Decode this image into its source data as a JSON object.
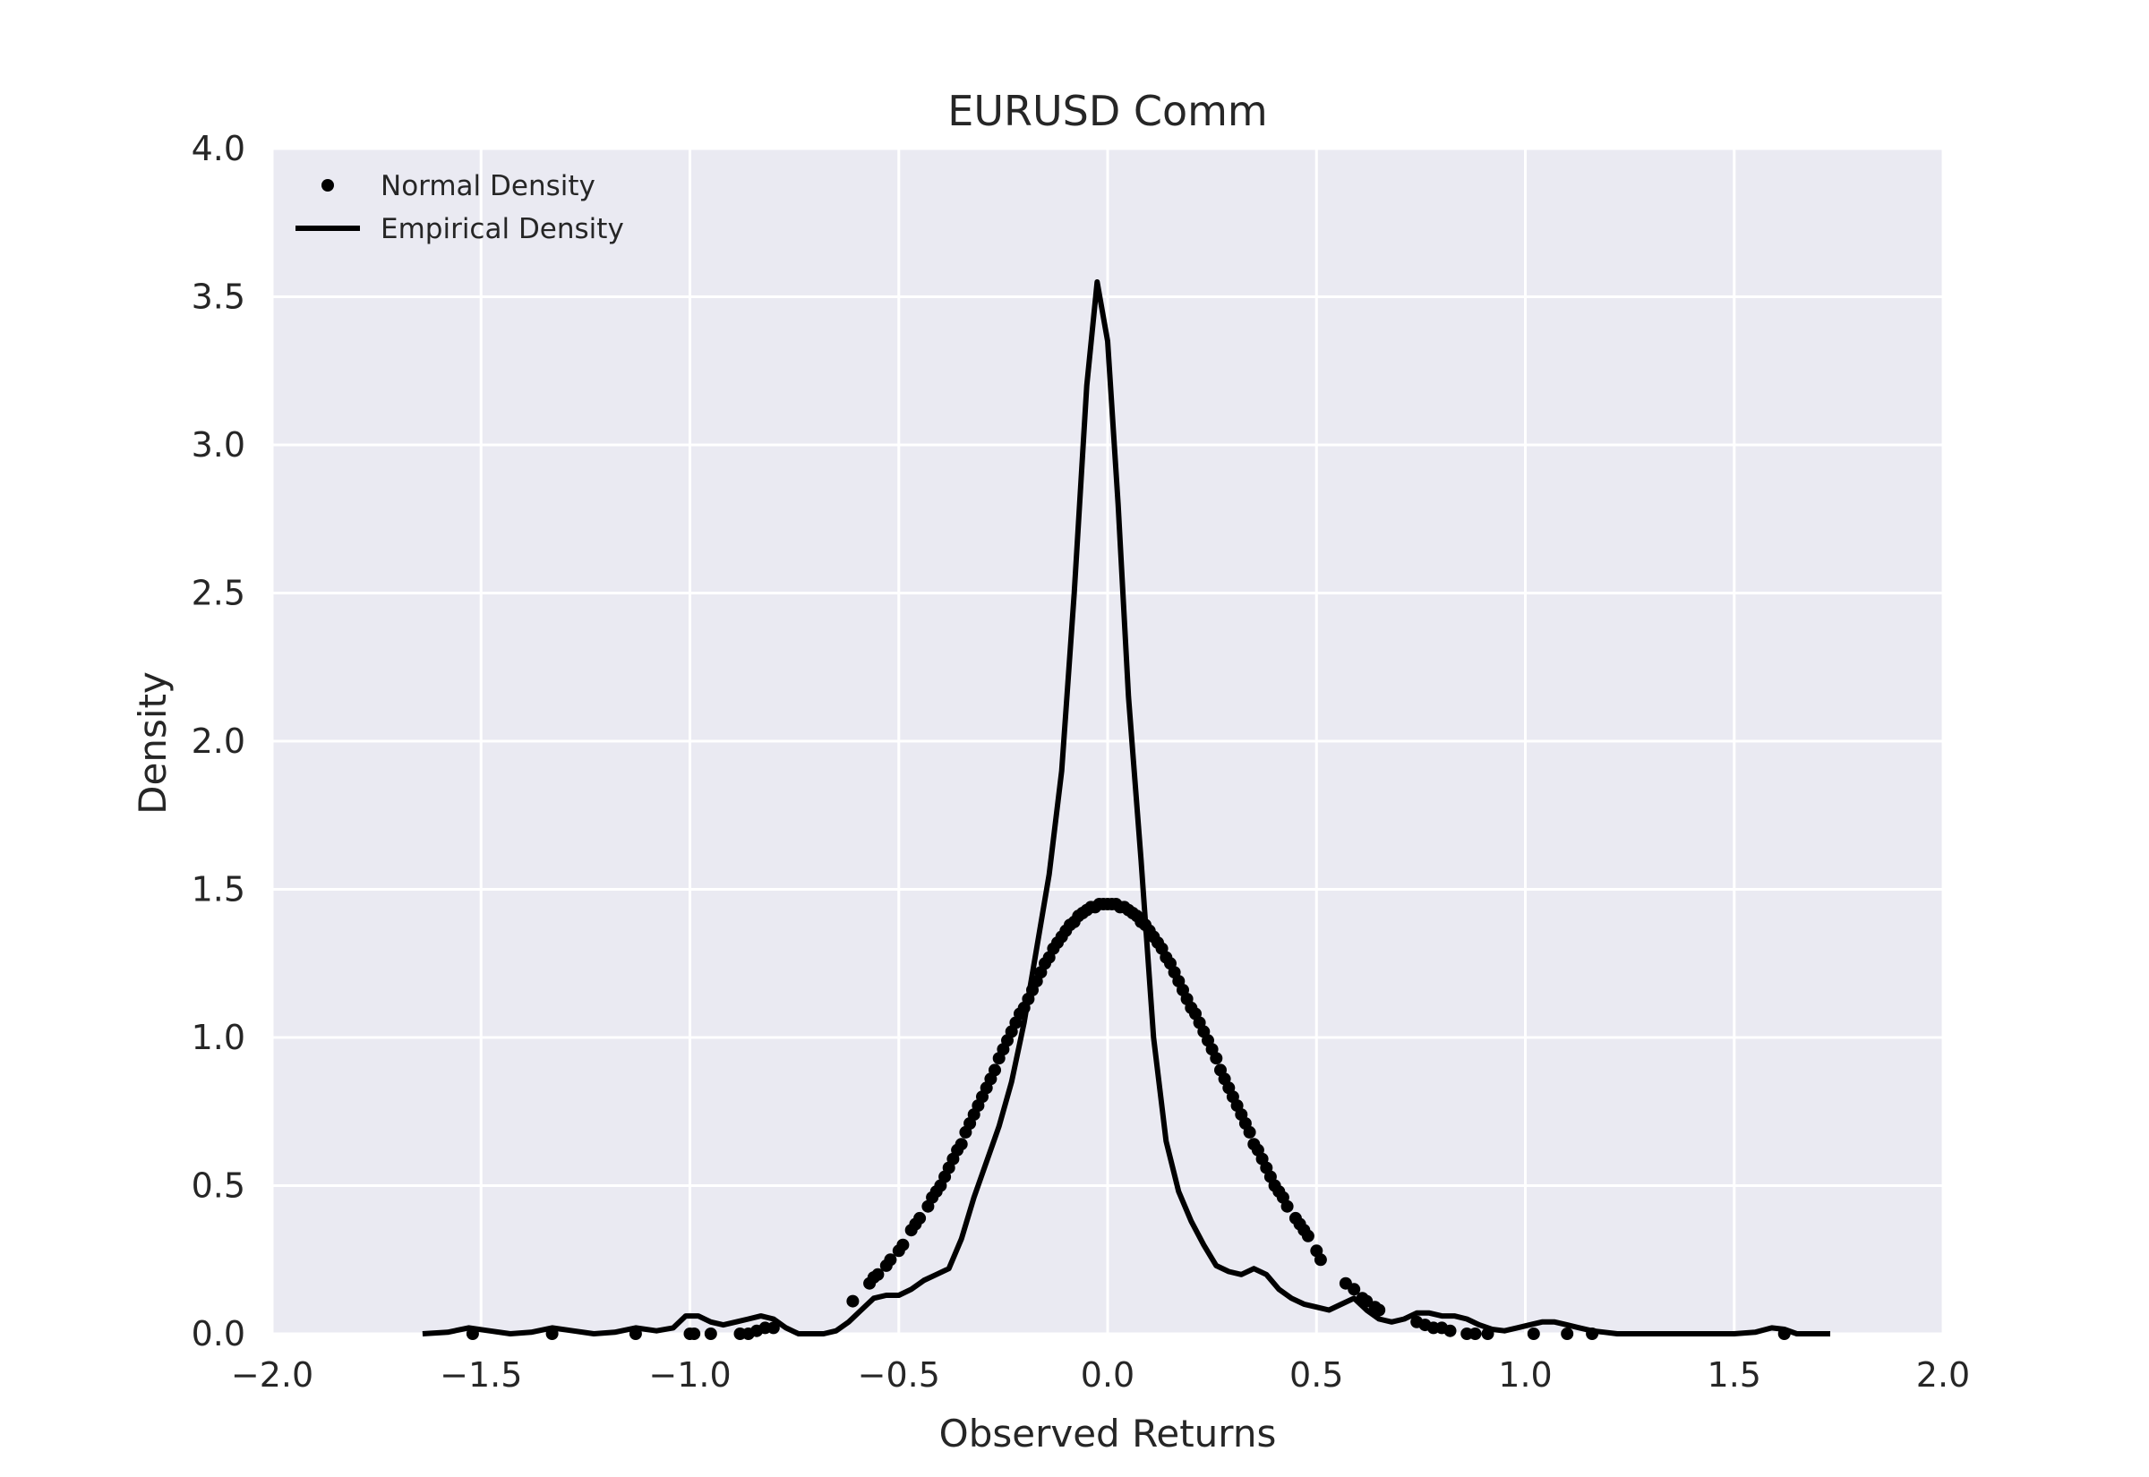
{
  "chart_data": {
    "type": "line",
    "title": "EURUSD Comm",
    "xlabel": "Observed Returns",
    "ylabel": "Density",
    "xlim": [
      -2.0,
      2.0
    ],
    "ylim": [
      0.0,
      4.0
    ],
    "xticks": [
      -2.0,
      -1.5,
      -1.0,
      -0.5,
      0.0,
      0.5,
      1.0,
      1.5,
      2.0
    ],
    "xtick_labels": [
      "−2.0",
      "−1.5",
      "−1.0",
      "−0.5",
      "0.0",
      "0.5",
      "1.0",
      "1.5",
      "2.0"
    ],
    "yticks": [
      0.0,
      0.5,
      1.0,
      1.5,
      2.0,
      2.5,
      3.0,
      3.5,
      4.0
    ],
    "ytick_labels": [
      "0.0",
      "0.5",
      "1.0",
      "1.5",
      "2.0",
      "2.5",
      "3.0",
      "3.5",
      "4.0"
    ],
    "grid": true,
    "legend_position": "top-left",
    "colors": {
      "background": "#eaeaf2",
      "grid": "#ffffff",
      "series": "#000000",
      "text": "#262626"
    },
    "series": [
      {
        "name": "Normal Density",
        "style": "markers",
        "mu": 0.0,
        "sigma": 0.276,
        "x": [
          -1.52,
          -1.33,
          -1.13,
          -1.0,
          -0.99,
          -0.95,
          -0.88,
          -0.86,
          -0.84,
          -0.82,
          -0.8,
          -0.61,
          -0.57,
          -0.56,
          -0.55,
          -0.53,
          -0.52,
          -0.5,
          -0.49,
          -0.47,
          -0.46,
          -0.45,
          -0.43,
          -0.42,
          -0.41,
          -0.4,
          -0.39,
          -0.38,
          -0.37,
          -0.36,
          -0.35,
          -0.34,
          -0.33,
          -0.32,
          -0.31,
          -0.3,
          -0.29,
          -0.28,
          -0.27,
          -0.26,
          -0.25,
          -0.24,
          -0.23,
          -0.22,
          -0.21,
          -0.2,
          -0.19,
          -0.18,
          -0.17,
          -0.16,
          -0.15,
          -0.14,
          -0.13,
          -0.12,
          -0.11,
          -0.1,
          -0.09,
          -0.08,
          -0.07,
          -0.06,
          -0.05,
          -0.04,
          -0.03,
          -0.02,
          -0.01,
          0.0,
          0.01,
          0.02,
          0.03,
          0.04,
          0.05,
          0.06,
          0.07,
          0.08,
          0.09,
          0.1,
          0.11,
          0.12,
          0.13,
          0.14,
          0.15,
          0.16,
          0.17,
          0.18,
          0.19,
          0.2,
          0.21,
          0.22,
          0.23,
          0.24,
          0.25,
          0.26,
          0.27,
          0.28,
          0.29,
          0.3,
          0.31,
          0.32,
          0.33,
          0.34,
          0.35,
          0.36,
          0.37,
          0.38,
          0.39,
          0.4,
          0.41,
          0.42,
          0.43,
          0.45,
          0.46,
          0.47,
          0.48,
          0.5,
          0.51,
          0.57,
          0.59,
          0.61,
          0.62,
          0.64,
          0.65,
          0.74,
          0.76,
          0.78,
          0.8,
          0.82,
          0.86,
          0.88,
          0.91,
          1.02,
          1.1,
          1.16,
          1.62
        ],
        "values": [
          0.0,
          0.0,
          0.0,
          0.0,
          0.0,
          0.0,
          0.0,
          0.0,
          0.01,
          0.02,
          0.02,
          0.11,
          0.17,
          0.19,
          0.2,
          0.23,
          0.25,
          0.28,
          0.3,
          0.35,
          0.37,
          0.39,
          0.43,
          0.46,
          0.48,
          0.5,
          0.53,
          0.56,
          0.59,
          0.62,
          0.64,
          0.68,
          0.71,
          0.74,
          0.77,
          0.8,
          0.83,
          0.86,
          0.89,
          0.93,
          0.96,
          0.99,
          1.02,
          1.05,
          1.08,
          1.1,
          1.13,
          1.16,
          1.19,
          1.22,
          1.25,
          1.27,
          1.3,
          1.32,
          1.34,
          1.36,
          1.38,
          1.39,
          1.41,
          1.42,
          1.43,
          1.44,
          1.44,
          1.45,
          1.45,
          1.45,
          1.45,
          1.45,
          1.44,
          1.44,
          1.43,
          1.42,
          1.41,
          1.39,
          1.38,
          1.36,
          1.34,
          1.32,
          1.3,
          1.27,
          1.25,
          1.22,
          1.19,
          1.16,
          1.13,
          1.1,
          1.08,
          1.05,
          1.02,
          0.99,
          0.96,
          0.93,
          0.89,
          0.86,
          0.83,
          0.8,
          0.77,
          0.74,
          0.71,
          0.68,
          0.64,
          0.62,
          0.59,
          0.56,
          0.53,
          0.5,
          0.48,
          0.46,
          0.43,
          0.39,
          0.37,
          0.35,
          0.33,
          0.28,
          0.25,
          0.17,
          0.15,
          0.12,
          0.11,
          0.09,
          0.08,
          0.04,
          0.03,
          0.02,
          0.02,
          0.01,
          0.0,
          0.0,
          0.0,
          0.0,
          0.0,
          0.0,
          0.0
        ]
      },
      {
        "name": "Empirical Density",
        "style": "line",
        "x": [
          -1.64,
          -1.58,
          -1.53,
          -1.48,
          -1.43,
          -1.38,
          -1.33,
          -1.28,
          -1.23,
          -1.18,
          -1.13,
          -1.08,
          -1.04,
          -1.01,
          -0.98,
          -0.95,
          -0.92,
          -0.89,
          -0.86,
          -0.83,
          -0.8,
          -0.77,
          -0.74,
          -0.71,
          -0.68,
          -0.65,
          -0.62,
          -0.59,
          -0.56,
          -0.53,
          -0.5,
          -0.47,
          -0.44,
          -0.41,
          -0.38,
          -0.35,
          -0.32,
          -0.29,
          -0.26,
          -0.23,
          -0.2,
          -0.17,
          -0.14,
          -0.11,
          -0.08,
          -0.05,
          -0.025,
          0.0,
          0.025,
          0.05,
          0.08,
          0.11,
          0.14,
          0.17,
          0.2,
          0.23,
          0.26,
          0.29,
          0.32,
          0.35,
          0.38,
          0.41,
          0.44,
          0.47,
          0.5,
          0.53,
          0.56,
          0.59,
          0.62,
          0.65,
          0.68,
          0.71,
          0.74,
          0.77,
          0.8,
          0.83,
          0.86,
          0.89,
          0.92,
          0.95,
          0.98,
          1.01,
          1.04,
          1.07,
          1.1,
          1.13,
          1.16,
          1.19,
          1.22,
          1.26,
          1.3,
          1.35,
          1.4,
          1.45,
          1.5,
          1.55,
          1.59,
          1.62,
          1.65,
          1.68,
          1.73
        ],
        "values": [
          0.0,
          0.005,
          0.02,
          0.01,
          0.0,
          0.005,
          0.02,
          0.01,
          0.0,
          0.005,
          0.02,
          0.01,
          0.02,
          0.06,
          0.06,
          0.04,
          0.03,
          0.04,
          0.05,
          0.06,
          0.05,
          0.02,
          0.0,
          0.0,
          0.0,
          0.01,
          0.04,
          0.08,
          0.12,
          0.13,
          0.13,
          0.15,
          0.18,
          0.2,
          0.22,
          0.32,
          0.46,
          0.58,
          0.7,
          0.85,
          1.05,
          1.3,
          1.55,
          1.9,
          2.5,
          3.2,
          3.55,
          3.35,
          2.8,
          2.15,
          1.6,
          1.0,
          0.65,
          0.48,
          0.38,
          0.3,
          0.23,
          0.21,
          0.2,
          0.22,
          0.2,
          0.15,
          0.12,
          0.1,
          0.09,
          0.08,
          0.1,
          0.12,
          0.08,
          0.05,
          0.04,
          0.05,
          0.07,
          0.07,
          0.06,
          0.06,
          0.05,
          0.03,
          0.015,
          0.01,
          0.02,
          0.03,
          0.04,
          0.04,
          0.03,
          0.02,
          0.01,
          0.005,
          0.0,
          0.0,
          0.0,
          0.0,
          0.0,
          0.0,
          0.0,
          0.005,
          0.02,
          0.015,
          0.0,
          0.0,
          0.0
        ]
      }
    ]
  }
}
